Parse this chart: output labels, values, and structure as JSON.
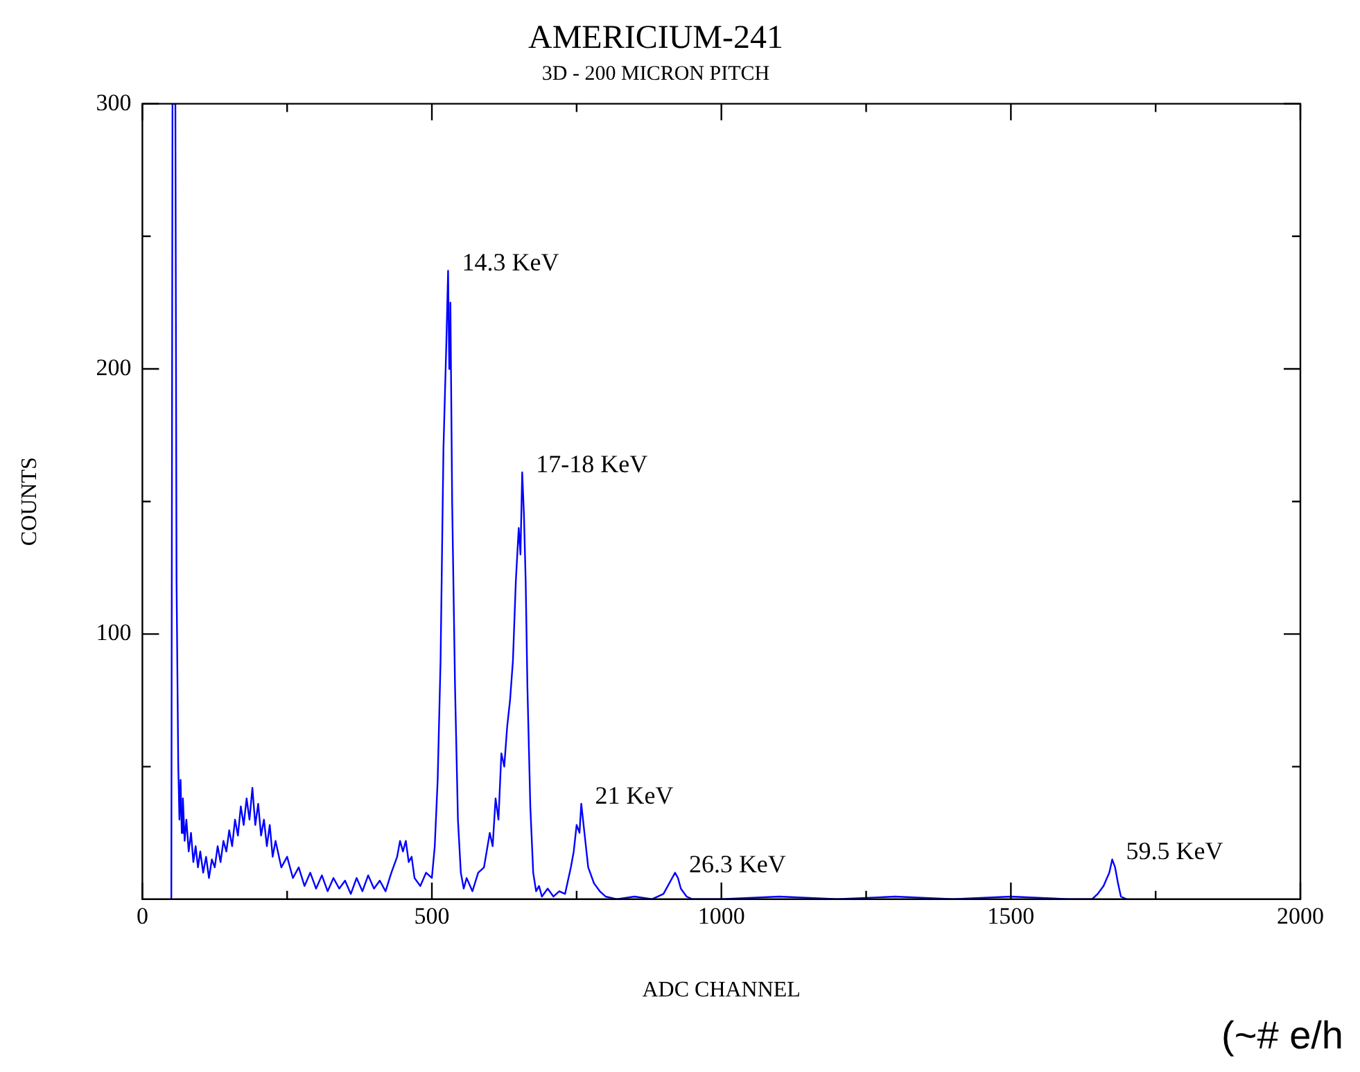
{
  "chart_data": {
    "type": "line",
    "title": "AMERICIUM-241",
    "subtitle": "3D - 200 MICRON PITCH",
    "xlabel": "ADC CHANNEL",
    "ylabel": "COUNTS",
    "xlim": [
      0,
      2000
    ],
    "ylim": [
      0,
      300
    ],
    "xticks": [
      0,
      {
        "value": 250,
        "label": null
      },
      500,
      {
        "value": 750,
        "label": null
      },
      1000,
      {
        "value": 1250,
        "label": null
      },
      1500,
      {
        "value": 1750,
        "label": null
      },
      2000
    ],
    "yticks": [
      {
        "value": 50,
        "label": null
      },
      100,
      {
        "value": 150,
        "label": null
      },
      200,
      {
        "value": 250,
        "label": null
      },
      300
    ],
    "series": [
      {
        "color": "#0000ff",
        "x": [
          50,
          52,
          57,
          59,
          62,
          64,
          66,
          68,
          70,
          73,
          76,
          80,
          84,
          88,
          92,
          96,
          100,
          105,
          110,
          115,
          120,
          125,
          130,
          135,
          140,
          145,
          150,
          155,
          160,
          165,
          170,
          175,
          180,
          185,
          190,
          195,
          200,
          205,
          210,
          215,
          220,
          225,
          230,
          240,
          250,
          260,
          270,
          280,
          290,
          300,
          310,
          320,
          330,
          340,
          350,
          360,
          370,
          380,
          390,
          400,
          410,
          420,
          430,
          440,
          445,
          450,
          455,
          460,
          465,
          470,
          480,
          490,
          500,
          505,
          510,
          515,
          520,
          525,
          528,
          530,
          532,
          535,
          540,
          545,
          550,
          555,
          560,
          570,
          580,
          590,
          600,
          605,
          610,
          615,
          620,
          625,
          630,
          635,
          640,
          645,
          650,
          653,
          656,
          659,
          662,
          665,
          670,
          675,
          680,
          685,
          690,
          700,
          710,
          720,
          730,
          740,
          745,
          750,
          755,
          758,
          762,
          766,
          770,
          780,
          790,
          800,
          820,
          850,
          880,
          900,
          910,
          915,
          920,
          925,
          930,
          940,
          950,
          1000,
          1100,
          1200,
          1300,
          1400,
          1500,
          1600,
          1640,
          1650,
          1660,
          1670,
          1675,
          1680,
          1685,
          1690,
          1700
        ],
        "values": [
          0,
          300,
          300,
          120,
          50,
          30,
          45,
          25,
          38,
          22,
          30,
          18,
          25,
          14,
          20,
          12,
          18,
          10,
          16,
          8,
          15,
          12,
          20,
          14,
          22,
          18,
          26,
          20,
          30,
          24,
          35,
          28,
          38,
          30,
          42,
          28,
          36,
          24,
          30,
          20,
          28,
          16,
          22,
          12,
          16,
          8,
          12,
          5,
          10,
          4,
          9,
          3,
          8,
          4,
          7,
          2,
          8,
          3,
          9,
          4,
          7,
          3,
          10,
          16,
          22,
          18,
          22,
          14,
          16,
          8,
          5,
          10,
          8,
          20,
          45,
          90,
          170,
          210,
          237,
          200,
          225,
          150,
          80,
          30,
          10,
          4,
          8,
          3,
          10,
          12,
          25,
          20,
          38,
          30,
          55,
          50,
          65,
          75,
          90,
          120,
          140,
          130,
          161,
          145,
          120,
          80,
          35,
          10,
          3,
          5,
          1,
          4,
          1,
          3,
          2,
          12,
          18,
          28,
          25,
          36,
          28,
          20,
          12,
          6,
          3,
          1,
          0,
          1,
          0,
          2,
          6,
          8,
          10,
          8,
          4,
          1,
          0,
          0,
          1,
          0,
          1,
          0,
          1,
          0,
          0,
          2,
          5,
          10,
          15,
          12,
          6,
          1,
          0
        ]
      }
    ],
    "annotations": [
      {
        "text": "14.3 KeV",
        "x": 528,
        "y": 237
      },
      {
        "text": "17-18 KeV",
        "x": 656,
        "y": 161
      },
      {
        "text": "21 KeV",
        "x": 758,
        "y": 36
      },
      {
        "text": "26.3 KeV",
        "x": 920,
        "y": 10
      },
      {
        "text": "59.5 KeV",
        "x": 1675,
        "y": 15
      },
      "(~# e/h"
    ]
  }
}
